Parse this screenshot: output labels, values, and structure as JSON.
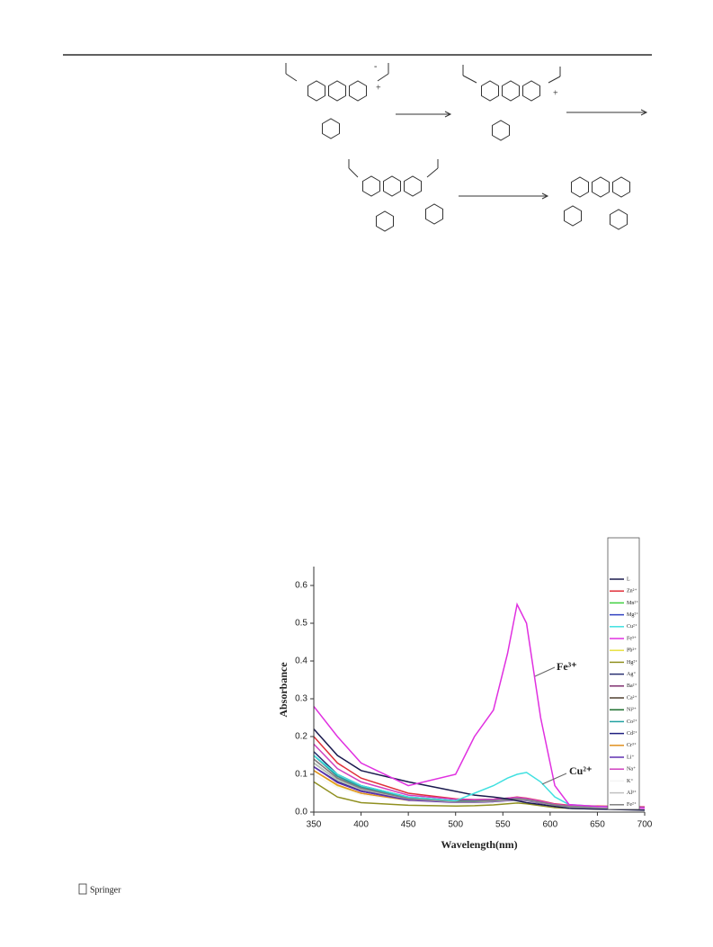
{
  "scheme": {
    "labels": [
      "-",
      "+",
      "+"
    ]
  },
  "chart_data": {
    "type": "line",
    "xlabel": "Wavelength(nm)",
    "ylabel": "Absorbance",
    "x": [
      350,
      375,
      400,
      450,
      500,
      520,
      540,
      555,
      565,
      575,
      590,
      605,
      620,
      650,
      700
    ],
    "xlim": [
      350,
      700
    ],
    "xticks": [
      350,
      400,
      450,
      500,
      550,
      600,
      650,
      700
    ],
    "ylim": [
      0,
      0.65
    ],
    "yticks": [
      {
        "value": 0,
        "label": "0.0"
      },
      0.1,
      0.2,
      0.3,
      0.4,
      0.5,
      0.6
    ],
    "annotations": [
      "Fe³⁺",
      "Cu²⁺"
    ],
    "series": [
      {
        "name": "Zn²⁺",
        "color": "#e0303a",
        "values": [
          0.2,
          0.13,
          0.09,
          0.05,
          0.035,
          0.033,
          0.034,
          0.037,
          0.04,
          0.037,
          0.03,
          0.022,
          0.018,
          0.016,
          0.014
        ]
      },
      {
        "name": "Mn²⁺",
        "color": "#40d040",
        "values": [
          0.13,
          0.085,
          0.06,
          0.035,
          0.028,
          0.028,
          0.03,
          0.033,
          0.035,
          0.033,
          0.026,
          0.019,
          0.015,
          0.013,
          0.011
        ]
      },
      {
        "name": "Mg²⁺",
        "color": "#3040c0",
        "values": [
          0.12,
          0.08,
          0.055,
          0.033,
          0.026,
          0.026,
          0.028,
          0.031,
          0.033,
          0.031,
          0.024,
          0.017,
          0.013,
          0.011,
          0.01
        ]
      },
      {
        "name": "Pb²⁺",
        "color": "#e8e040",
        "values": [
          0.11,
          0.07,
          0.05,
          0.03,
          0.024,
          0.024,
          0.026,
          0.029,
          0.031,
          0.029,
          0.022,
          0.016,
          0.012,
          0.01,
          0.009
        ]
      },
      {
        "name": "Hg²⁺",
        "color": "#909020",
        "values": [
          0.08,
          0.04,
          0.025,
          0.018,
          0.016,
          0.017,
          0.019,
          0.022,
          0.024,
          0.022,
          0.017,
          0.012,
          0.01,
          0.008,
          0.007
        ]
      },
      {
        "name": "Ag⁺",
        "color": "#283070",
        "values": [
          0.16,
          0.1,
          0.07,
          0.04,
          0.03,
          0.03,
          0.032,
          0.035,
          0.037,
          0.035,
          0.028,
          0.02,
          0.016,
          0.014,
          0.012
        ]
      },
      {
        "name": "Ba²⁺",
        "color": "#803070",
        "values": [
          0.14,
          0.09,
          0.063,
          0.037,
          0.029,
          0.029,
          0.031,
          0.034,
          0.036,
          0.034,
          0.027,
          0.019,
          0.015,
          0.013,
          0.011
        ]
      },
      {
        "name": "Ca²⁺",
        "color": "#504030",
        "values": [
          0.15,
          0.095,
          0.066,
          0.038,
          0.03,
          0.03,
          0.032,
          0.035,
          0.037,
          0.035,
          0.028,
          0.02,
          0.016,
          0.014,
          0.012
        ]
      },
      {
        "name": "Ni²⁺",
        "color": "#207030",
        "values": [
          0.13,
          0.085,
          0.06,
          0.035,
          0.027,
          0.027,
          0.029,
          0.032,
          0.034,
          0.032,
          0.025,
          0.018,
          0.014,
          0.012,
          0.01
        ]
      },
      {
        "name": "Co²⁺",
        "color": "#20a0a0",
        "values": [
          0.15,
          0.095,
          0.066,
          0.037,
          0.029,
          0.029,
          0.031,
          0.034,
          0.036,
          0.034,
          0.027,
          0.019,
          0.015,
          0.013,
          0.011
        ]
      },
      {
        "name": "Cd²⁺",
        "color": "#202080",
        "values": [
          0.12,
          0.08,
          0.056,
          0.033,
          0.026,
          0.026,
          0.028,
          0.031,
          0.033,
          0.031,
          0.024,
          0.017,
          0.013,
          0.011,
          0.01
        ]
      },
      {
        "name": "Cr³⁺",
        "color": "#e09020",
        "values": [
          0.11,
          0.072,
          0.05,
          0.03,
          0.024,
          0.024,
          0.026,
          0.029,
          0.031,
          0.029,
          0.022,
          0.016,
          0.012,
          0.01,
          0.009
        ]
      },
      {
        "name": "Li⁺",
        "color": "#6030b0",
        "values": [
          0.12,
          0.078,
          0.055,
          0.032,
          0.025,
          0.025,
          0.027,
          0.03,
          0.032,
          0.03,
          0.023,
          0.016,
          0.012,
          0.011,
          0.01
        ]
      },
      {
        "name": "Na⁺",
        "color": "#d040c0",
        "values": [
          0.18,
          0.115,
          0.08,
          0.045,
          0.034,
          0.033,
          0.034,
          0.037,
          0.039,
          0.036,
          0.029,
          0.021,
          0.017,
          0.015,
          0.013
        ]
      },
      {
        "name": "K⁺",
        "color": "#f4f4f4",
        "values": [
          0.1,
          0.065,
          0.046,
          0.028,
          0.022,
          0.022,
          0.024,
          0.027,
          0.029,
          0.027,
          0.02,
          0.015,
          0.011,
          0.01,
          0.009
        ]
      },
      {
        "name": "Al³⁺",
        "color": "#c0c0c0",
        "values": [
          0.13,
          0.085,
          0.06,
          0.035,
          0.027,
          0.027,
          0.029,
          0.032,
          0.034,
          0.032,
          0.025,
          0.018,
          0.014,
          0.012,
          0.01
        ]
      },
      {
        "name": "Fe²⁺",
        "color": "#808080",
        "values": [
          0.14,
          0.09,
          0.063,
          0.036,
          0.028,
          0.028,
          0.03,
          0.033,
          0.035,
          0.033,
          0.026,
          0.019,
          0.015,
          0.013,
          0.011
        ]
      },
      {
        "name": "L",
        "color": "#1a1a4e",
        "values": [
          0.22,
          0.15,
          0.11,
          0.08,
          0.055,
          0.045,
          0.04,
          0.035,
          0.03,
          0.025,
          0.02,
          0.015,
          0.01,
          0.008,
          0.005
        ]
      },
      {
        "name": "Cu²⁺",
        "color": "#40e0e0",
        "values": [
          0.15,
          0.1,
          0.07,
          0.04,
          0.03,
          0.05,
          0.07,
          0.09,
          0.1,
          0.105,
          0.08,
          0.04,
          0.02,
          0.015,
          0.01
        ]
      },
      {
        "name": "Fe³⁺",
        "color": "#e030e0",
        "values": [
          0.28,
          0.2,
          0.13,
          0.07,
          0.1,
          0.2,
          0.27,
          0.42,
          0.55,
          0.5,
          0.25,
          0.07,
          0.02,
          0.015,
          0.01
        ]
      }
    ]
  },
  "footer": {
    "publisher": "Springer"
  }
}
